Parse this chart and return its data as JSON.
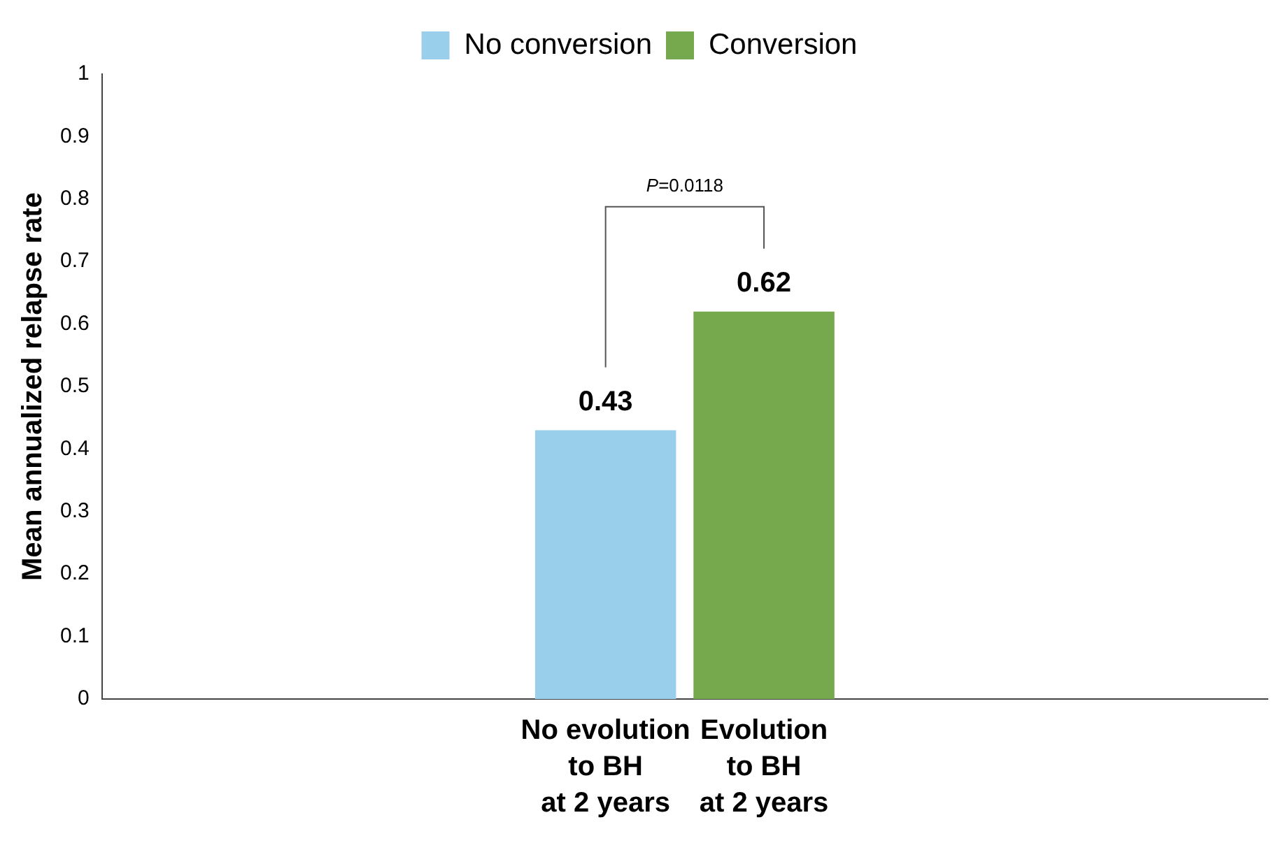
{
  "chart_data": {
    "type": "bar",
    "ylabel": "Mean annualized relapse rate",
    "categories": [
      "No evolution\nto BH\nat 2 years",
      "Evolution\nto BH\nat 2 years"
    ],
    "series": [
      {
        "name": "No conversion",
        "color": "#99cfea",
        "values": [
          0.43,
          null
        ]
      },
      {
        "name": "Conversion",
        "color": "#76a84e",
        "values": [
          null,
          0.62
        ]
      }
    ],
    "ylim": [
      0,
      1
    ],
    "yticks": [
      0,
      0.1,
      0.2,
      0.3,
      0.4,
      0.5,
      0.6,
      0.7,
      0.8,
      0.9,
      1
    ],
    "grid": false,
    "legend": "top",
    "data_labels": true,
    "annotations": [
      "P=0.0118"
    ]
  }
}
